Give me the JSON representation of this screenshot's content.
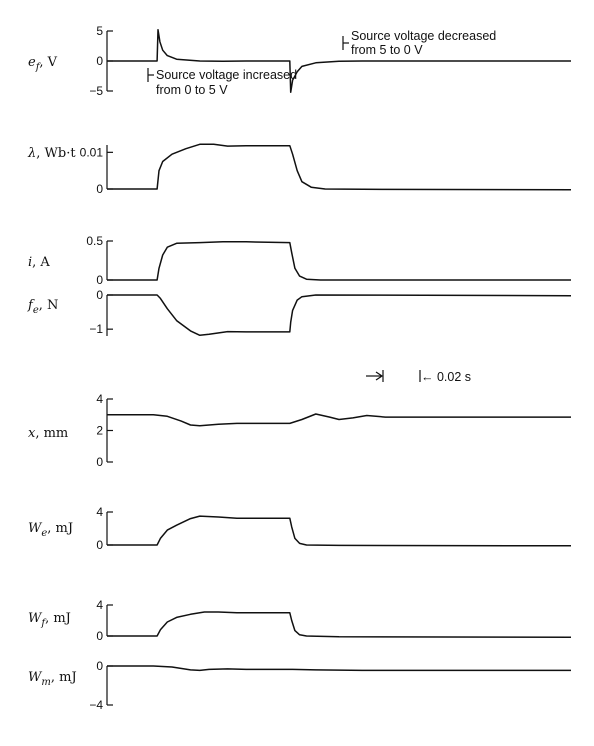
{
  "chart_data": {
    "type": "line",
    "time_marker": {
      "label": "← 0.02 s"
    },
    "panels": [
      {
        "id": "ef",
        "ylabel": "e_f, V",
        "ylabel_main": "e",
        "ylabel_sub": "f",
        "ylabel_rest": ", V",
        "ticks": [
          {
            "v": 5,
            "label": "5"
          },
          {
            "v": 0,
            "label": "0"
          },
          {
            "v": -5,
            "label": "−5"
          }
        ],
        "ylim": [
          -5,
          5
        ],
        "annotations": [
          {
            "lines": [
              "Source voltage increased",
              "from 0 to 5 V"
            ]
          },
          {
            "lines": [
              "Source voltage decreased",
              "from 5 to 0 V"
            ]
          }
        ],
        "points": [
          [
            0,
            0
          ],
          [
            0.1,
            0
          ],
          [
            0.108,
            0
          ],
          [
            0.11,
            5.2
          ],
          [
            0.114,
            3.2
          ],
          [
            0.12,
            1.8
          ],
          [
            0.13,
            0.9
          ],
          [
            0.15,
            0.3
          ],
          [
            0.2,
            0
          ],
          [
            0.25,
            -0.05
          ],
          [
            0.3,
            0
          ],
          [
            0.38,
            0
          ],
          [
            0.394,
            0
          ],
          [
            0.396,
            -5.2
          ],
          [
            0.4,
            -3.2
          ],
          [
            0.41,
            -1.8
          ],
          [
            0.42,
            -0.9
          ],
          [
            0.45,
            -0.3
          ],
          [
            0.5,
            -0.05
          ],
          [
            0.55,
            0
          ],
          [
            0.7,
            0
          ],
          [
            1,
            0
          ]
        ]
      },
      {
        "id": "lambda",
        "ylabel": "λ, Wb·t",
        "ylabel_main": "λ",
        "ylabel_sub": "",
        "ylabel_rest": ", Wb·t",
        "ticks": [
          {
            "v": 0.01,
            "label": "0.01"
          },
          {
            "v": 0,
            "label": "0"
          }
        ],
        "ylim": [
          0,
          0.012
        ],
        "annotations": [],
        "points": [
          [
            0,
            0
          ],
          [
            0.108,
            0
          ],
          [
            0.112,
            0.005
          ],
          [
            0.12,
            0.0075
          ],
          [
            0.14,
            0.0095
          ],
          [
            0.17,
            0.011
          ],
          [
            0.2,
            0.0122
          ],
          [
            0.23,
            0.0122
          ],
          [
            0.26,
            0.0117
          ],
          [
            0.3,
            0.0118
          ],
          [
            0.394,
            0.0118
          ],
          [
            0.4,
            0.0095
          ],
          [
            0.41,
            0.005
          ],
          [
            0.42,
            0.002
          ],
          [
            0.44,
            0.0005
          ],
          [
            0.47,
            0
          ],
          [
            0.6,
            -0.0001
          ],
          [
            1,
            -0.0002
          ]
        ]
      },
      {
        "id": "i",
        "ylabel": "i, A",
        "ylabel_main": "i",
        "ylabel_sub": "",
        "ylabel_rest": ", A",
        "ticks": [
          {
            "v": 0.5,
            "label": "0.5"
          },
          {
            "v": 0,
            "label": "0"
          }
        ],
        "ylim": [
          0,
          0.5
        ],
        "annotations": [],
        "points": [
          [
            0,
            0
          ],
          [
            0.108,
            0
          ],
          [
            0.112,
            0.15
          ],
          [
            0.12,
            0.32
          ],
          [
            0.13,
            0.42
          ],
          [
            0.15,
            0.47
          ],
          [
            0.2,
            0.48
          ],
          [
            0.25,
            0.49
          ],
          [
            0.3,
            0.49
          ],
          [
            0.394,
            0.48
          ],
          [
            0.398,
            0.35
          ],
          [
            0.405,
            0.15
          ],
          [
            0.415,
            0.05
          ],
          [
            0.43,
            0.01
          ],
          [
            0.46,
            0
          ],
          [
            1,
            0
          ]
        ]
      },
      {
        "id": "fe",
        "ylabel": "f_e, N",
        "ylabel_main": "f",
        "ylabel_sub": "e",
        "ylabel_rest": ", N",
        "ticks": [
          {
            "v": 0,
            "label": "0"
          },
          {
            "v": -1,
            "label": "−1"
          }
        ],
        "ylim": [
          -1.2,
          0
        ],
        "annotations": [],
        "points": [
          [
            0,
            0
          ],
          [
            0.108,
            0
          ],
          [
            0.115,
            -0.1
          ],
          [
            0.13,
            -0.4
          ],
          [
            0.15,
            -0.75
          ],
          [
            0.18,
            -1.05
          ],
          [
            0.2,
            -1.18
          ],
          [
            0.22,
            -1.15
          ],
          [
            0.26,
            -1.07
          ],
          [
            0.3,
            -1.08
          ],
          [
            0.394,
            -1.08
          ],
          [
            0.396,
            -0.8
          ],
          [
            0.4,
            -0.45
          ],
          [
            0.41,
            -0.15
          ],
          [
            0.42,
            -0.05
          ],
          [
            0.45,
            0
          ],
          [
            1,
            -0.02
          ]
        ]
      },
      {
        "id": "x",
        "ylabel": "x, mm",
        "ylabel_main": "x",
        "ylabel_sub": "",
        "ylabel_rest": ", mm",
        "ticks": [
          {
            "v": 4,
            "label": "4"
          },
          {
            "v": 2,
            "label": "2"
          },
          {
            "v": 0,
            "label": "0"
          }
        ],
        "ylim": [
          0,
          4
        ],
        "annotations": [],
        "points": [
          [
            0,
            3
          ],
          [
            0.1,
            3
          ],
          [
            0.13,
            2.9
          ],
          [
            0.16,
            2.6
          ],
          [
            0.18,
            2.35
          ],
          [
            0.2,
            2.3
          ],
          [
            0.24,
            2.4
          ],
          [
            0.28,
            2.45
          ],
          [
            0.394,
            2.45
          ],
          [
            0.42,
            2.7
          ],
          [
            0.45,
            3.05
          ],
          [
            0.48,
            2.85
          ],
          [
            0.5,
            2.7
          ],
          [
            0.53,
            2.8
          ],
          [
            0.56,
            2.95
          ],
          [
            0.6,
            2.85
          ],
          [
            0.65,
            2.85
          ],
          [
            0.75,
            2.85
          ],
          [
            1,
            2.85
          ]
        ]
      },
      {
        "id": "We",
        "ylabel": "W_e, mJ",
        "ylabel_main": "W",
        "ylabel_sub": "e",
        "ylabel_rest": ", mJ",
        "ticks": [
          {
            "v": 4,
            "label": "4"
          },
          {
            "v": 0,
            "label": "0"
          }
        ],
        "ylim": [
          0,
          4
        ],
        "annotations": [],
        "points": [
          [
            0,
            0
          ],
          [
            0.108,
            0
          ],
          [
            0.115,
            0.8
          ],
          [
            0.13,
            1.8
          ],
          [
            0.15,
            2.4
          ],
          [
            0.18,
            3.2
          ],
          [
            0.2,
            3.5
          ],
          [
            0.24,
            3.4
          ],
          [
            0.28,
            3.25
          ],
          [
            0.394,
            3.25
          ],
          [
            0.398,
            2.2
          ],
          [
            0.405,
            0.8
          ],
          [
            0.415,
            0.2
          ],
          [
            0.43,
            0
          ],
          [
            0.5,
            -0.05
          ],
          [
            1,
            -0.1
          ]
        ]
      },
      {
        "id": "Wf",
        "ylabel": "W_f, mJ",
        "ylabel_main": "W",
        "ylabel_sub": "f",
        "ylabel_rest": ", mJ",
        "ticks": [
          {
            "v": 4,
            "label": "4"
          },
          {
            "v": 0,
            "label": "0"
          }
        ],
        "ylim": [
          0,
          4
        ],
        "annotations": [],
        "points": [
          [
            0,
            0
          ],
          [
            0.108,
            0
          ],
          [
            0.115,
            0.8
          ],
          [
            0.13,
            1.8
          ],
          [
            0.15,
            2.4
          ],
          [
            0.18,
            2.8
          ],
          [
            0.21,
            3.1
          ],
          [
            0.24,
            3.1
          ],
          [
            0.28,
            3.0
          ],
          [
            0.394,
            3.0
          ],
          [
            0.398,
            2.0
          ],
          [
            0.405,
            0.7
          ],
          [
            0.415,
            0.15
          ],
          [
            0.43,
            0
          ],
          [
            0.5,
            -0.1
          ],
          [
            1,
            -0.15
          ]
        ]
      },
      {
        "id": "Wm",
        "ylabel": "W_m, mJ",
        "ylabel_main": "W",
        "ylabel_sub": "m",
        "ylabel_rest": ", mJ",
        "ticks": [
          {
            "v": 0,
            "label": "0"
          },
          {
            "v": -4,
            "label": "−4"
          }
        ],
        "ylim": [
          -4,
          0
        ],
        "annotations": [],
        "points": [
          [
            0,
            0
          ],
          [
            0.1,
            0
          ],
          [
            0.14,
            -0.1
          ],
          [
            0.18,
            -0.4
          ],
          [
            0.2,
            -0.45
          ],
          [
            0.22,
            -0.35
          ],
          [
            0.26,
            -0.3
          ],
          [
            0.3,
            -0.35
          ],
          [
            0.4,
            -0.35
          ],
          [
            0.45,
            -0.4
          ],
          [
            0.55,
            -0.45
          ],
          [
            0.7,
            -0.45
          ],
          [
            1,
            -0.45
          ]
        ]
      }
    ]
  }
}
